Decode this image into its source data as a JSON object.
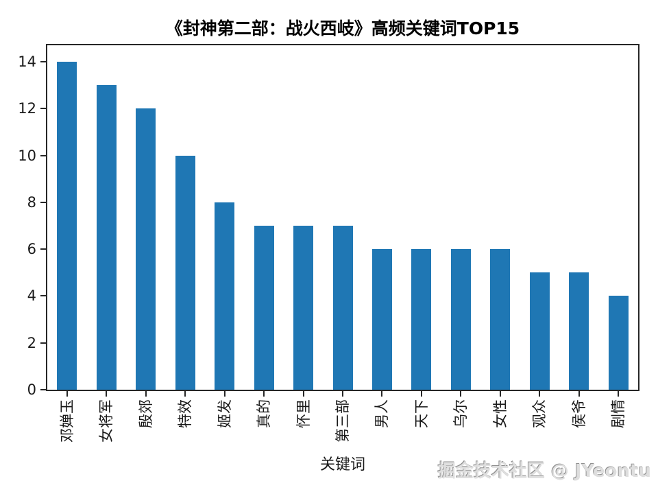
{
  "title": "《封神第二部：战火西岐》高频关键词TOP15",
  "watermark": "掘金技术社区 @ JYeontu",
  "colors": {
    "bar": "#1f77b4",
    "axis": "#262626",
    "text": "#1a1a1a"
  },
  "chart_data": {
    "type": "bar",
    "title": "《封神第二部：战火西岐》高频关键词TOP15",
    "categories": [
      "邓婵玉",
      "女将军",
      "殷郊",
      "特效",
      "姬发",
      "真的",
      "怀里",
      "第三部",
      "男人",
      "天下",
      "乌尔",
      "女性",
      "观众",
      "侯爷",
      "剧情"
    ],
    "values": [
      14,
      13,
      12,
      10,
      8,
      7,
      7,
      7,
      6,
      6,
      6,
      6,
      5,
      5,
      4
    ],
    "xlabel": "关键词",
    "ylabel": "",
    "ylim": [
      0,
      14.7
    ],
    "yticks": [
      0,
      2,
      4,
      6,
      8,
      10,
      12,
      14
    ],
    "grid": false,
    "legend": null,
    "bar_color": "#1f77b4",
    "tick_label_rotation": 90
  }
}
